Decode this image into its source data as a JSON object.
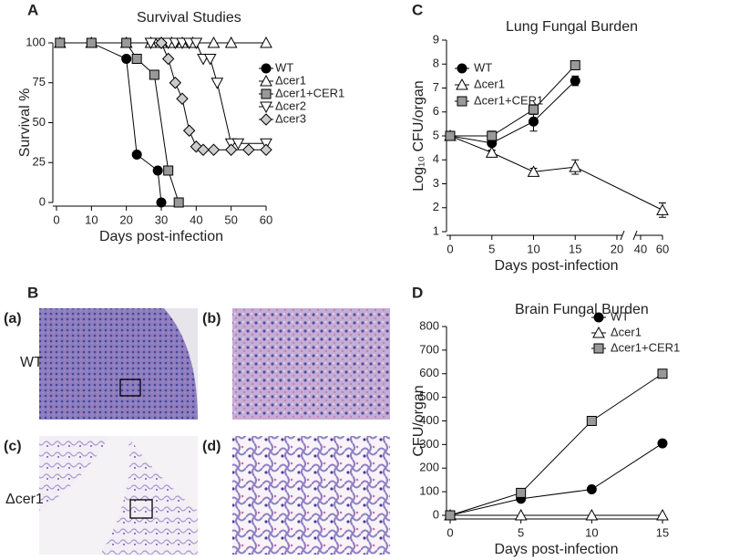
{
  "figure": {
    "panel_labels": [
      "A",
      "B",
      "C",
      "D"
    ],
    "histology_labels": [
      "(a)",
      "(b)",
      "(c)",
      "(d)"
    ],
    "row_labels": [
      "WT",
      "Δcer1"
    ]
  },
  "chart_data": [
    {
      "type": "line",
      "title": "Survival Studies",
      "x_label": "Days post-infection",
      "y_label": "Survival %",
      "xlim": [
        0,
        60
      ],
      "xticks": [
        0,
        10,
        20,
        30,
        40,
        50,
        60
      ],
      "ylim": [
        0,
        100
      ],
      "yticks": [
        0,
        25,
        50,
        75,
        100
      ],
      "series": [
        {
          "name": "WT",
          "color": "#000000",
          "marker": "circle",
          "x": [
            1,
            10,
            20,
            23,
            29,
            30
          ],
          "values": [
            100,
            100,
            90,
            30,
            20,
            0
          ]
        },
        {
          "name": "Δcer1",
          "color": "#ffffff",
          "marker": "triangle",
          "x": [
            1,
            10,
            20,
            27,
            30,
            33,
            36,
            39,
            45,
            50,
            60
          ],
          "values": [
            100,
            100,
            100,
            100,
            100,
            100,
            100,
            100,
            100,
            100,
            100
          ]
        },
        {
          "name": "Δcer1+CER1",
          "color": "#999999",
          "marker": "square",
          "x": [
            1,
            10,
            20,
            23,
            28,
            32,
            35
          ],
          "values": [
            100,
            100,
            100,
            90,
            80,
            20,
            0
          ]
        },
        {
          "name": "Δcer2",
          "color": "#ffffff",
          "marker": "triangle-down",
          "x": [
            27,
            30,
            32,
            34,
            36,
            38,
            40,
            42,
            44,
            46,
            50,
            52,
            60
          ],
          "values": [
            100,
            100,
            100,
            100,
            100,
            100,
            100,
            90,
            90,
            75,
            37,
            37,
            37
          ]
        },
        {
          "name": "Δcer3",
          "color": "#cccccc",
          "marker": "diamond",
          "x": [
            30,
            32,
            34,
            36,
            38,
            40,
            42,
            45,
            50,
            55,
            60
          ],
          "values": [
            100,
            90,
            75,
            65,
            45,
            35,
            33,
            33,
            33,
            33,
            33
          ]
        }
      ]
    },
    {
      "type": "line",
      "title": "Lung Fungal Burden",
      "x_label": "Days post-infection",
      "y_label": "Log₁₀ CFU/organ",
      "xlim": [
        0,
        60
      ],
      "xbreak": [
        20,
        40
      ],
      "xticks": [
        0,
        5,
        10,
        15,
        20,
        40,
        60
      ],
      "ylim": [
        1,
        9
      ],
      "yticks": [
        1,
        2,
        3,
        4,
        5,
        6,
        7,
        8,
        9
      ],
      "series": [
        {
          "name": "WT",
          "color": "#000000",
          "marker": "circle",
          "x": [
            0,
            5,
            10,
            15
          ],
          "values": [
            5,
            4.7,
            5.6,
            7.3
          ],
          "errors": [
            0,
            0.3,
            0.4,
            0.2
          ]
        },
        {
          "name": "Δcer1",
          "color": "#ffffff",
          "marker": "triangle",
          "x": [
            0,
            5,
            10,
            15,
            60
          ],
          "values": [
            5,
            4.3,
            3.5,
            3.7,
            1.9
          ],
          "errors": [
            0,
            0.1,
            0.15,
            0.3,
            0.3
          ]
        },
        {
          "name": "Δcer1+CER1",
          "color": "#999999",
          "marker": "square",
          "x": [
            0,
            5,
            10,
            15
          ],
          "values": [
            5,
            5,
            6.1,
            7.95
          ],
          "errors": [
            0,
            0.2,
            0.2,
            0.15
          ]
        }
      ]
    },
    {
      "type": "line",
      "title": "Brain Fungal Burden",
      "x_label": "Days post-infection",
      "y_label": "CFU/organ",
      "xlim": [
        0,
        15
      ],
      "xticks": [
        0,
        5,
        10,
        15
      ],
      "ylim": [
        0,
        800
      ],
      "yticks": [
        0,
        100,
        200,
        300,
        400,
        500,
        600,
        700,
        800
      ],
      "series": [
        {
          "name": "WT",
          "color": "#000000",
          "marker": "circle",
          "x": [
            0,
            5,
            10,
            15
          ],
          "values": [
            0,
            70,
            110,
            305
          ]
        },
        {
          "name": "Δcer1",
          "color": "#ffffff",
          "marker": "triangle",
          "x": [
            0,
            5,
            10,
            15
          ],
          "values": [
            0,
            0,
            0,
            0
          ]
        },
        {
          "name": "Δcer1+CER1",
          "color": "#999999",
          "marker": "square",
          "x": [
            0,
            5,
            10,
            15
          ],
          "values": [
            0,
            95,
            400,
            600
          ]
        }
      ]
    }
  ]
}
